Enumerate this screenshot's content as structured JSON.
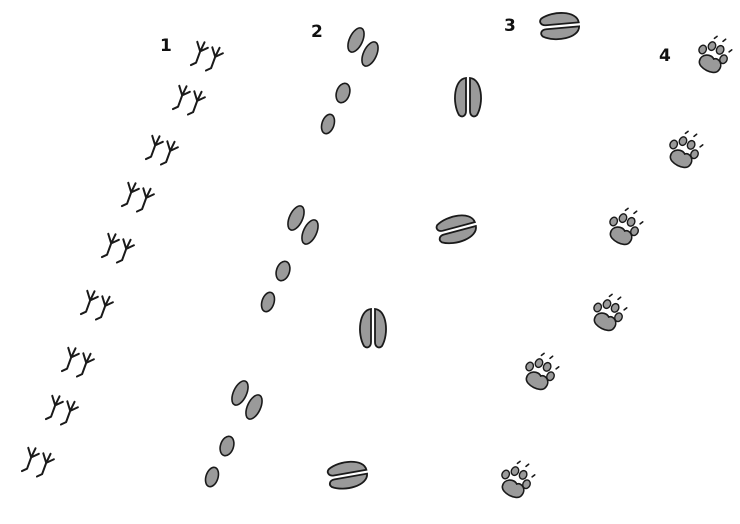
{
  "labels": {
    "track_1": "1",
    "track_2": "2",
    "track_3": "3",
    "track_4": "4"
  },
  "colors": {
    "fill": "#9a9a9a",
    "stroke": "#1a1a1a"
  },
  "icons": [
    "bird-print-icon",
    "rabbit-print-icon",
    "hoof-print-icon",
    "paw-print-icon"
  ]
}
